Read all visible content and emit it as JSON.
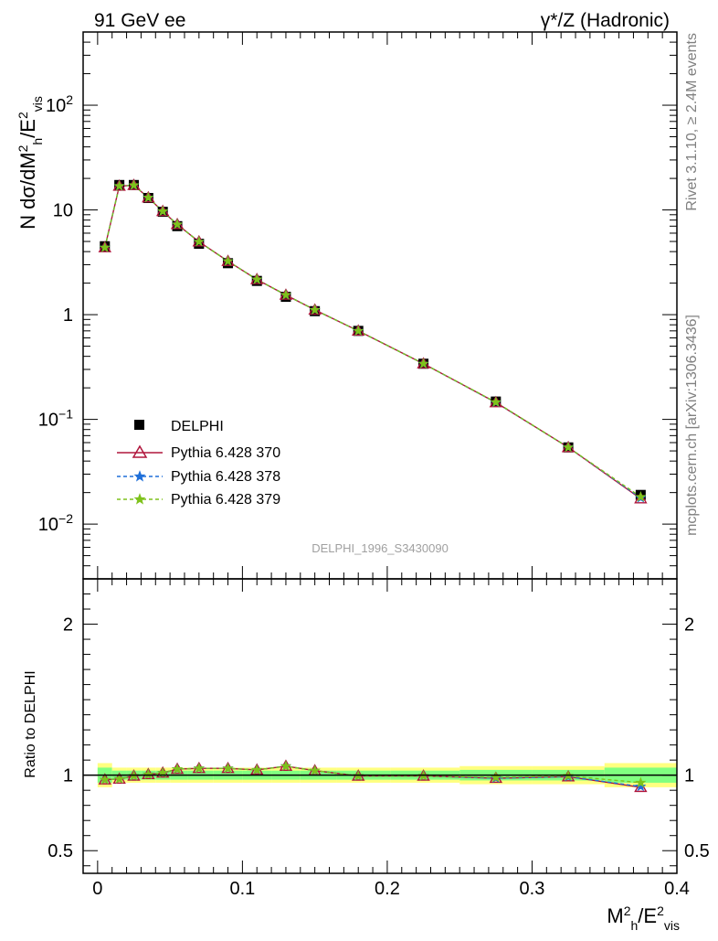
{
  "header": {
    "left": "91 GeV ee",
    "right_main": "γ*/Z (Hadronic)"
  },
  "side_labels": {
    "top": "Rivet 3.1.10, ≥ 2.4M events",
    "bottom": "mcplots.cern.ch [arXiv:1306.3436]"
  },
  "analysis_id": "DELPHI_1996_S3430090",
  "axes": {
    "ylabel_main": "N dσ/dM²h/E²vis",
    "ylabel_ratio": "Ratio to DELPHI",
    "xlabel": "M²h/E²vis",
    "x_ticks": [
      "0",
      "0.1",
      "0.2",
      "0.3",
      "0.4"
    ],
    "y_main_ticks": [
      {
        "v": 100,
        "base": "10",
        "exp": "2"
      },
      {
        "v": 10,
        "base": "10",
        "exp": ""
      },
      {
        "v": 1,
        "base": "1",
        "exp": ""
      },
      {
        "v": 0.1,
        "base": "10",
        "exp": "−1"
      },
      {
        "v": 0.01,
        "base": "10",
        "exp": "−2"
      }
    ],
    "y_ratio_ticks": [
      "0.5",
      "1",
      "2"
    ]
  },
  "chart_data": {
    "type": "line",
    "x_range": [
      -0.01,
      0.4
    ],
    "y_main_range": [
      0.003,
      500
    ],
    "y_main_log": true,
    "y_ratio_range": [
      0.35,
      2.3
    ],
    "legend_position": "lower-left",
    "x": [
      0.005,
      0.015,
      0.025,
      0.035,
      0.045,
      0.055,
      0.07,
      0.09,
      0.11,
      0.13,
      0.15,
      0.18,
      0.225,
      0.275,
      0.325,
      0.375
    ],
    "data": {
      "name": "DELPHI",
      "values": [
        4.5,
        17.3,
        17.3,
        13.0,
        9.6,
        7.0,
        4.75,
        3.1,
        2.1,
        1.48,
        1.08,
        0.7,
        0.34,
        0.148,
        0.054,
        0.019
      ],
      "band_inner": [
        0.05,
        0.03,
        0.03,
        0.03,
        0.03,
        0.03,
        0.03,
        0.03,
        0.03,
        0.03,
        0.03,
        0.03,
        0.03,
        0.035,
        0.035,
        0.05
      ],
      "band_outer": [
        0.08,
        0.05,
        0.05,
        0.05,
        0.05,
        0.05,
        0.05,
        0.05,
        0.05,
        0.05,
        0.05,
        0.05,
        0.05,
        0.06,
        0.06,
        0.08
      ]
    },
    "series": [
      {
        "name": "Pythia 6.428 370",
        "color": "#b0163c",
        "dash": "solid",
        "marker": "triangle",
        "values": [
          4.37,
          16.9,
          17.2,
          13.1,
          9.7,
          7.28,
          4.97,
          3.24,
          2.17,
          1.54,
          1.11,
          0.7,
          0.34,
          0.145,
          0.054,
          0.0175
        ],
        "ratio": [
          0.97,
          0.975,
          0.995,
          1.005,
          1.015,
          1.04,
          1.045,
          1.045,
          1.035,
          1.06,
          1.03,
          0.995,
          0.995,
          0.98,
          0.99,
          0.92
        ]
      },
      {
        "name": "Pythia 6.428 378",
        "color": "#1f6fd9",
        "dash": "dashed",
        "marker": "star",
        "values": [
          4.37,
          16.9,
          17.2,
          13.1,
          9.7,
          7.28,
          4.97,
          3.24,
          2.17,
          1.54,
          1.11,
          0.7,
          0.34,
          0.145,
          0.054,
          0.0178
        ],
        "ratio": [
          0.97,
          0.975,
          0.995,
          1.005,
          1.015,
          1.04,
          1.045,
          1.045,
          1.035,
          1.06,
          1.03,
          0.995,
          0.995,
          0.98,
          0.99,
          0.925
        ]
      },
      {
        "name": "Pythia 6.428 379",
        "color": "#7ec21b",
        "dash": "dashed",
        "marker": "star",
        "values": [
          4.37,
          16.9,
          17.2,
          13.1,
          9.7,
          7.28,
          4.97,
          3.24,
          2.17,
          1.54,
          1.11,
          0.7,
          0.34,
          0.146,
          0.054,
          0.0182
        ],
        "ratio": [
          0.97,
          0.975,
          0.995,
          1.005,
          1.015,
          1.04,
          1.045,
          1.045,
          1.035,
          1.06,
          1.03,
          0.995,
          0.995,
          0.985,
          0.995,
          0.95
        ]
      }
    ]
  }
}
